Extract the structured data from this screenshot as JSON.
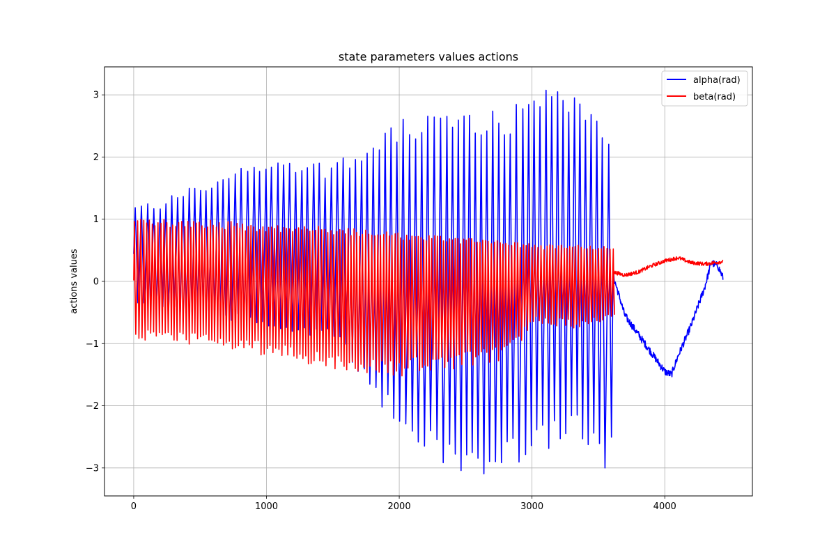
{
  "chart_data": {
    "type": "line",
    "title": "state parameters values actions",
    "xlabel": "",
    "ylabel": "actions values",
    "xlim": [
      -220,
      4660
    ],
    "ylim": [
      -3.45,
      3.45
    ],
    "x_ticks": [
      0,
      1000,
      2000,
      3000,
      4000
    ],
    "x_tick_labels": [
      "0",
      "1000",
      "2000",
      "3000",
      "4000"
    ],
    "y_ticks": [
      -3,
      -2,
      -1,
      0,
      1,
      2,
      3
    ],
    "y_tick_labels": [
      "−3",
      "−2",
      "−1",
      "0",
      "1",
      "2",
      "3"
    ],
    "grid": true,
    "legend_position": "top-right",
    "n_points": 4440,
    "series": [
      {
        "name": "alpha(rad)",
        "color": "#0000ff",
        "oscillating_region_end": 3610,
        "peak_envelope": [
          [
            0,
            1.25
          ],
          [
            200,
            1.35
          ],
          [
            600,
            1.7
          ],
          [
            1000,
            2.05
          ],
          [
            1500,
            1.9
          ],
          [
            1800,
            2.3
          ],
          [
            2000,
            2.6
          ],
          [
            2300,
            2.75
          ],
          [
            2800,
            2.75
          ],
          [
            3000,
            3.05
          ],
          [
            3200,
            3.12
          ],
          [
            3500,
            2.85
          ],
          [
            3610,
            1.9
          ]
        ],
        "trough_envelope": [
          [
            0,
            -0.4
          ],
          [
            500,
            -0.55
          ],
          [
            1000,
            -0.75
          ],
          [
            1500,
            -0.95
          ],
          [
            1760,
            -1.9
          ],
          [
            2000,
            -2.35
          ],
          [
            2300,
            -3.1
          ],
          [
            2800,
            -3.1
          ],
          [
            3000,
            -2.9
          ],
          [
            3300,
            -2.6
          ],
          [
            3560,
            -3.15
          ],
          [
            3610,
            -2.0
          ]
        ],
        "tail_trend": [
          [
            3610,
            0.1
          ],
          [
            3700,
            -0.55
          ],
          [
            3800,
            -0.85
          ],
          [
            3900,
            -1.15
          ],
          [
            4000,
            -1.45
          ],
          [
            4050,
            -1.5
          ],
          [
            4100,
            -1.2
          ],
          [
            4200,
            -0.7
          ],
          [
            4300,
            -0.1
          ],
          [
            4350,
            0.3
          ],
          [
            4400,
            0.25
          ],
          [
            4440,
            0.05
          ]
        ],
        "tail_noise": 0.06
      },
      {
        "name": "beta(rad)",
        "color": "#ff0000",
        "oscillating_region_end": 3610,
        "peak_envelope": [
          [
            0,
            1.02
          ],
          [
            500,
            1.0
          ],
          [
            1000,
            0.93
          ],
          [
            1500,
            0.88
          ],
          [
            2000,
            0.78
          ],
          [
            2500,
            0.7
          ],
          [
            3000,
            0.6
          ],
          [
            3610,
            0.58
          ]
        ],
        "trough_envelope": [
          [
            0,
            -0.95
          ],
          [
            500,
            -1.05
          ],
          [
            1000,
            -1.2
          ],
          [
            1500,
            -1.45
          ],
          [
            2000,
            -1.55
          ],
          [
            2500,
            -1.4
          ],
          [
            2800,
            -1.25
          ],
          [
            3000,
            -0.7
          ],
          [
            3300,
            -0.75
          ],
          [
            3610,
            -0.6
          ]
        ],
        "tail_trend": [
          [
            3610,
            0.15
          ],
          [
            3700,
            0.1
          ],
          [
            3800,
            0.15
          ],
          [
            3900,
            0.25
          ],
          [
            4000,
            0.33
          ],
          [
            4100,
            0.38
          ],
          [
            4200,
            0.3
          ],
          [
            4300,
            0.28
          ],
          [
            4440,
            0.32
          ]
        ],
        "tail_noise": 0.03
      }
    ]
  }
}
